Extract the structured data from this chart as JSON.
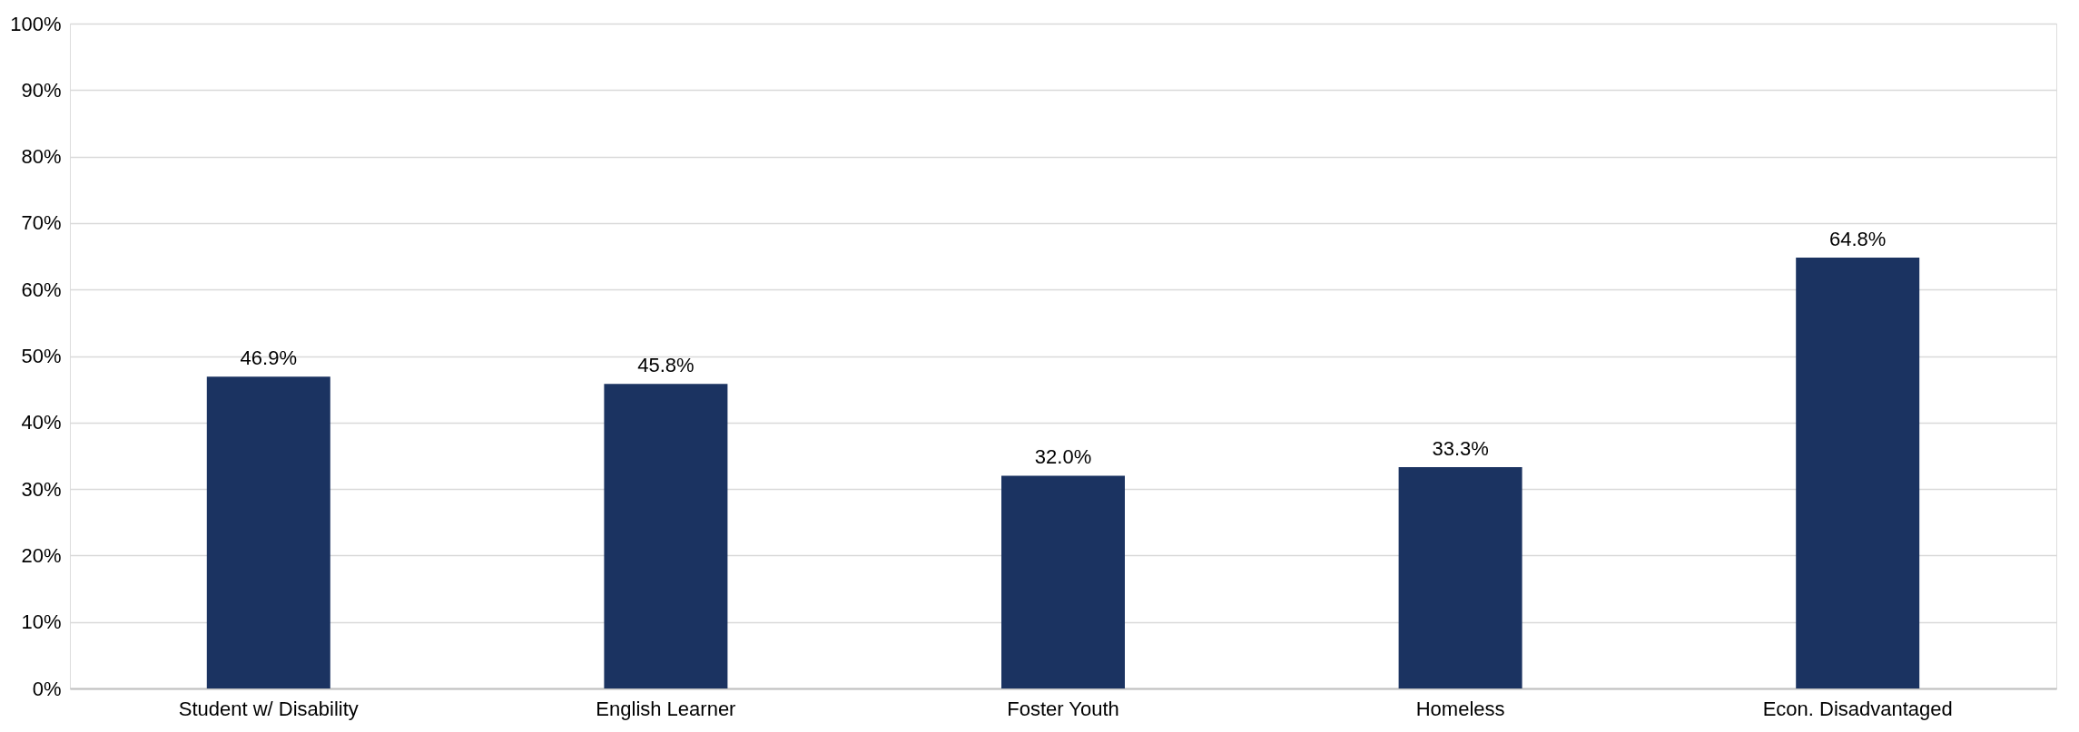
{
  "chart_data": {
    "type": "bar",
    "categories": [
      "Student w/ Disability",
      "English Learner",
      "Foster Youth",
      "Homeless",
      "Econ. Disadvantaged"
    ],
    "values": [
      46.9,
      45.8,
      32.0,
      33.3,
      64.8
    ],
    "value_labels": [
      "46.9%",
      "45.8%",
      "32.0%",
      "33.3%",
      "64.8%"
    ],
    "color": "#1b3361",
    "ylim": [
      0,
      100
    ],
    "yticks": [
      {
        "value": 0,
        "label": "0%"
      },
      {
        "value": 10,
        "label": "10%"
      },
      {
        "value": 20,
        "label": "20%"
      },
      {
        "value": 30,
        "label": "30%"
      },
      {
        "value": 40,
        "label": "40%"
      },
      {
        "value": 50,
        "label": "50%"
      },
      {
        "value": 60,
        "label": "60%"
      },
      {
        "value": 70,
        "label": "70%"
      },
      {
        "value": 80,
        "label": "80%"
      },
      {
        "value": 90,
        "label": "90%"
      },
      {
        "value": 100,
        "label": "100%"
      }
    ],
    "grid": "y"
  }
}
